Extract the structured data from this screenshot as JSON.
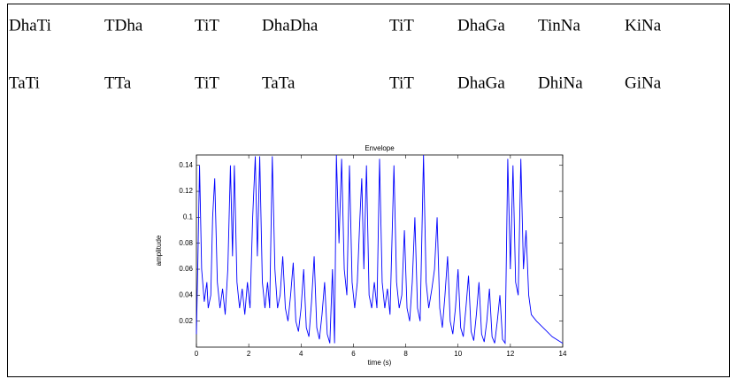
{
  "table": {
    "rows": [
      [
        "DhaTi",
        "TDha",
        "TiT",
        "DhaDha",
        "TiT",
        "DhaGa",
        "TinNa",
        "KiNa"
      ],
      [
        "TaTi",
        "TTa",
        "TiT",
        "TaTa",
        "TiT",
        "DhaGa",
        "DhiNa",
        "GiNa"
      ]
    ]
  },
  "chart_data": {
    "type": "line",
    "title": "Envelope",
    "x_label": "time (s)",
    "y_label": "amplitude",
    "xlim": [
      0,
      14
    ],
    "xticks": [
      0,
      2,
      4,
      6,
      8,
      10,
      12,
      14
    ],
    "ylim": [
      0,
      0.148
    ],
    "yticks": [
      0.02,
      0.04,
      0.06,
      0.08,
      0.1,
      0.12,
      0.14
    ],
    "series": [
      {
        "color": "#0000ff",
        "x": [
          0,
          0.05,
          0.12,
          0.2,
          0.3,
          0.4,
          0.45,
          0.55,
          0.62,
          0.7,
          0.8,
          0.9,
          1.0,
          1.1,
          1.2,
          1.3,
          1.38,
          1.45,
          1.55,
          1.65,
          1.75,
          1.85,
          1.95,
          2.05,
          2.15,
          2.25,
          2.33,
          2.42,
          2.52,
          2.62,
          2.72,
          2.8,
          2.9,
          3.0,
          3.1,
          3.2,
          3.3,
          3.4,
          3.5,
          3.6,
          3.7,
          3.8,
          3.9,
          4.0,
          4.1,
          4.2,
          4.3,
          4.4,
          4.5,
          4.6,
          4.7,
          4.8,
          4.9,
          5.0,
          5.1,
          5.2,
          5.28,
          5.35,
          5.45,
          5.55,
          5.65,
          5.75,
          5.85,
          5.95,
          6.05,
          6.15,
          6.25,
          6.32,
          6.4,
          6.5,
          6.6,
          6.7,
          6.8,
          6.9,
          7.0,
          7.1,
          7.2,
          7.3,
          7.4,
          7.55,
          7.65,
          7.75,
          7.85,
          7.95,
          8.05,
          8.15,
          8.25,
          8.35,
          8.45,
          8.55,
          8.68,
          8.78,
          8.88,
          9.0,
          9.1,
          9.2,
          9.3,
          9.4,
          9.5,
          9.6,
          9.7,
          9.8,
          9.9,
          10.0,
          10.1,
          10.2,
          10.3,
          10.4,
          10.5,
          10.6,
          10.7,
          10.8,
          10.9,
          11.0,
          11.1,
          11.2,
          11.3,
          11.4,
          11.5,
          11.6,
          11.7,
          11.8,
          11.9,
          12.0,
          12.1,
          12.2,
          12.3,
          12.4,
          12.5,
          12.6,
          12.7,
          12.8,
          13.0,
          13.3,
          13.6,
          14.0
        ],
        "values": [
          0.01,
          0.06,
          0.14,
          0.06,
          0.035,
          0.05,
          0.03,
          0.04,
          0.1,
          0.13,
          0.05,
          0.03,
          0.045,
          0.025,
          0.06,
          0.14,
          0.07,
          0.14,
          0.05,
          0.03,
          0.045,
          0.025,
          0.05,
          0.03,
          0.1,
          0.147,
          0.07,
          0.147,
          0.05,
          0.03,
          0.05,
          0.03,
          0.147,
          0.06,
          0.03,
          0.04,
          0.07,
          0.03,
          0.02,
          0.04,
          0.065,
          0.02,
          0.012,
          0.03,
          0.06,
          0.015,
          0.008,
          0.035,
          0.07,
          0.015,
          0.006,
          0.025,
          0.05,
          0.01,
          0.003,
          0.06,
          0.003,
          0.148,
          0.08,
          0.145,
          0.06,
          0.04,
          0.14,
          0.05,
          0.03,
          0.05,
          0.1,
          0.13,
          0.06,
          0.14,
          0.04,
          0.03,
          0.05,
          0.03,
          0.145,
          0.05,
          0.03,
          0.045,
          0.025,
          0.14,
          0.05,
          0.03,
          0.04,
          0.09,
          0.03,
          0.02,
          0.05,
          0.1,
          0.03,
          0.02,
          0.148,
          0.05,
          0.03,
          0.045,
          0.06,
          0.1,
          0.03,
          0.015,
          0.04,
          0.07,
          0.02,
          0.01,
          0.03,
          0.06,
          0.015,
          0.008,
          0.03,
          0.055,
          0.012,
          0.005,
          0.025,
          0.05,
          0.01,
          0.004,
          0.02,
          0.045,
          0.008,
          0.003,
          0.02,
          0.04,
          0.006,
          0.003,
          0.145,
          0.06,
          0.14,
          0.05,
          0.04,
          0.145,
          0.06,
          0.09,
          0.04,
          0.025,
          0.02,
          0.014,
          0.008,
          0.003
        ]
      }
    ]
  }
}
